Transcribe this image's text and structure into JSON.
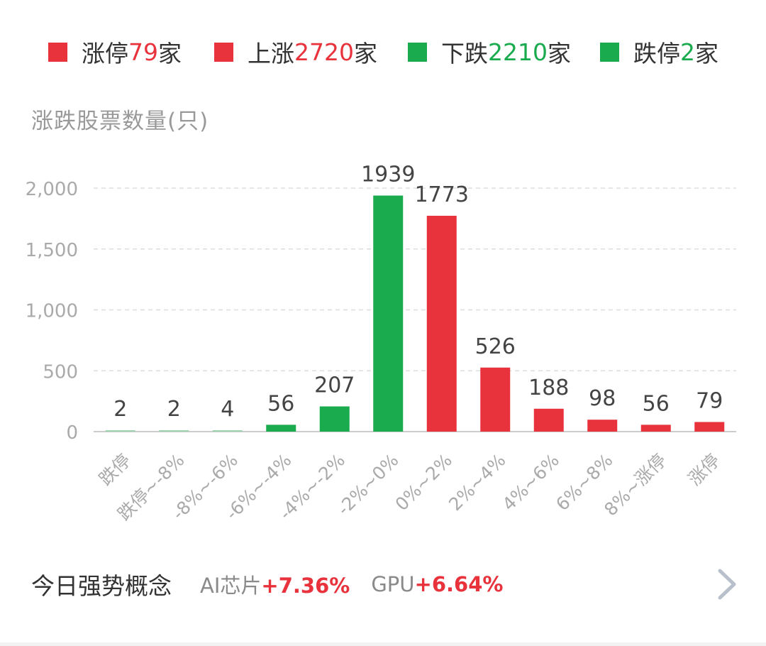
{
  "colors": {
    "up": "#e8333c",
    "down": "#1aab4f",
    "down_light": "#9fd4b0",
    "grid": "#dddddd",
    "axis": "#cccccc",
    "tick_text": "#aaaaaa",
    "label_text": "#444444"
  },
  "legend": [
    {
      "prefix": "涨停",
      "count": "79",
      "suffix": "家",
      "swatch_color": "#e8333c",
      "count_color": "#e8333c"
    },
    {
      "prefix": "上涨",
      "count": "2720",
      "suffix": "家",
      "swatch_color": "#e8333c",
      "count_color": "#e8333c"
    },
    {
      "prefix": "下跌",
      "count": "2210",
      "suffix": "家",
      "swatch_color": "#1aab4f",
      "count_color": "#1aab4f"
    },
    {
      "prefix": "跌停",
      "count": "2",
      "suffix": "家",
      "swatch_color": "#1aab4f",
      "count_color": "#1aab4f"
    }
  ],
  "chart_data": {
    "type": "bar",
    "title": "涨跌股票数量(只)",
    "categories": [
      "跌停",
      "跌停~-8%",
      "-8%~-6%",
      "-6%~-4%",
      "-4%~-2%",
      "-2%~0%",
      "0%~2%",
      "2%~4%",
      "4%~6%",
      "6%~8%",
      "8%~涨停",
      "涨停"
    ],
    "values": [
      2,
      2,
      4,
      56,
      207,
      1939,
      1773,
      526,
      188,
      98,
      56,
      79
    ],
    "data_labels": [
      "2",
      "2",
      "4",
      "56",
      "207",
      "1939",
      "1773",
      "526",
      "188",
      "98",
      "56",
      "79"
    ],
    "bar_colors": [
      "#9fd4b0",
      "#9fd4b0",
      "#9fd4b0",
      "#1aab4f",
      "#1aab4f",
      "#1aab4f",
      "#e8333c",
      "#e8333c",
      "#e8333c",
      "#e8333c",
      "#e8333c",
      "#e8333c"
    ],
    "ylim": [
      0,
      2000
    ],
    "yticks": [
      0,
      500,
      1000,
      1500,
      2000
    ],
    "ytick_labels": [
      "0",
      "500",
      "1,000",
      "1,500",
      "2,000"
    ],
    "grid": true,
    "legend_position": "top"
  },
  "footer": {
    "title": "今日强势概念",
    "concepts": [
      {
        "name": "AI芯片",
        "change": "+7.36%",
        "change_color": "#e8333c"
      },
      {
        "name": "GPU",
        "change": "+6.64%",
        "change_color": "#e8333c"
      }
    ],
    "chevron_icon": "chevron-right-icon"
  }
}
